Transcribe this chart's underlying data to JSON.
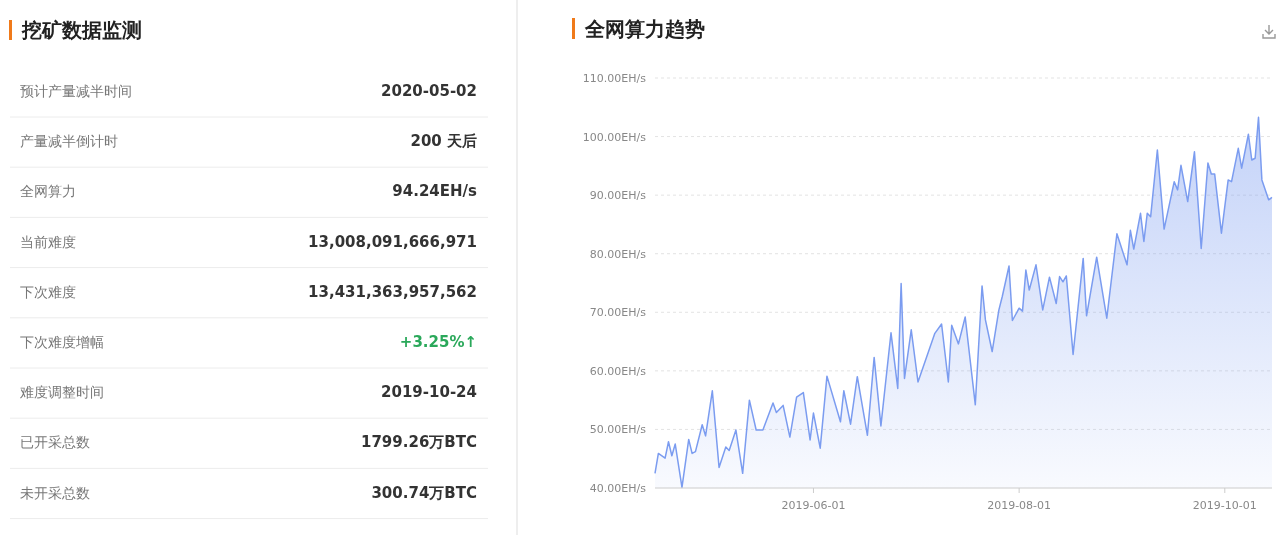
{
  "chart_data": [
    {
      "type": "other",
      "title": "挖矿数据监测",
      "categories": [
        "预计产量减半时间",
        "产量减半倒计时",
        "全网算力",
        "当前难度",
        "下次难度",
        "下次难度增幅",
        "难度调整时间",
        "已开采总数",
        "未开采总数"
      ],
      "value_labels": [
        "2020-05-02",
        "200 天后",
        "94.24EH/s",
        "13,008,091,666,971",
        "13,431,363,957,562",
        "+3.25%↑",
        "2019-10-24",
        "1799.26万BTC",
        "300.74万BTC"
      ],
      "colors": [
        "#333333",
        "#333333",
        "#333333",
        "#333333",
        "#333333",
        "#2aa85a",
        "#333333",
        "#333333",
        "#333333"
      ]
    },
    {
      "type": "area",
      "title": "全网算力趋势",
      "grid": "y",
      "xlim": [
        "2019-04-15",
        "2019-10-15"
      ],
      "xticks": [
        "2019-06-01",
        "2019-08-01",
        "2019-10-01"
      ],
      "ylim": [
        40,
        110
      ],
      "yticks": [
        {
          "value": 40,
          "label": "40.00EH/s"
        },
        {
          "value": 50,
          "label": "50.00EH/s"
        },
        {
          "value": 60,
          "label": "60.00EH/s"
        },
        {
          "value": 70,
          "label": "70.00EH/s"
        },
        {
          "value": 80,
          "label": "80.00EH/s"
        },
        {
          "value": 90,
          "label": "90.00EH/s"
        },
        {
          "value": 100,
          "label": "100.00EH/s"
        },
        {
          "value": 110,
          "label": "110.00EH/s"
        }
      ],
      "x": [
        "2019-04-15",
        "2019-04-16",
        "2019-04-18",
        "2019-04-19",
        "2019-04-20",
        "2019-04-21",
        "2019-04-23",
        "2019-04-25",
        "2019-04-26",
        "2019-04-27",
        "2019-04-29",
        "2019-04-30",
        "2019-05-02",
        "2019-05-04",
        "2019-05-06",
        "2019-05-07",
        "2019-05-09",
        "2019-05-11",
        "2019-05-13",
        "2019-05-15",
        "2019-05-17",
        "2019-05-20",
        "2019-05-21",
        "2019-05-23",
        "2019-05-25",
        "2019-05-27",
        "2019-05-29",
        "2019-05-31",
        "2019-06-01",
        "2019-06-03",
        "2019-06-05",
        "2019-06-09",
        "2019-06-10",
        "2019-06-12",
        "2019-06-14",
        "2019-06-17",
        "2019-06-19",
        "2019-06-21",
        "2019-06-24",
        "2019-06-26",
        "2019-06-27",
        "2019-06-28",
        "2019-06-30",
        "2019-07-02",
        "2019-07-07",
        "2019-07-09",
        "2019-07-11",
        "2019-07-12",
        "2019-07-14",
        "2019-07-16",
        "2019-07-19",
        "2019-07-21",
        "2019-07-22",
        "2019-07-24",
        "2019-07-26",
        "2019-07-27",
        "2019-07-29",
        "2019-07-30",
        "2019-08-01",
        "2019-08-02",
        "2019-08-03",
        "2019-08-04",
        "2019-08-06",
        "2019-08-08",
        "2019-08-10",
        "2019-08-12",
        "2019-08-13",
        "2019-08-14",
        "2019-08-15",
        "2019-08-17",
        "2019-08-20",
        "2019-08-21",
        "2019-08-24",
        "2019-08-27",
        "2019-08-30",
        "2019-09-02",
        "2019-09-03",
        "2019-09-04",
        "2019-09-06",
        "2019-09-07",
        "2019-09-08",
        "2019-09-09",
        "2019-09-11",
        "2019-09-13",
        "2019-09-16",
        "2019-09-17",
        "2019-09-18",
        "2019-09-20",
        "2019-09-22",
        "2019-09-24",
        "2019-09-26",
        "2019-09-27",
        "2019-09-28",
        "2019-09-30",
        "2019-10-02",
        "2019-10-03",
        "2019-10-05",
        "2019-10-06",
        "2019-10-08",
        "2019-10-09",
        "2019-10-10",
        "2019-10-11",
        "2019-10-12",
        "2019-10-14",
        "2019-10-15"
      ],
      "series": [
        {
          "color": "#7b9cf0",
          "values": [
            42.5,
            45.9,
            45.1,
            47.9,
            45.5,
            47.5,
            40.1,
            48.3,
            45.9,
            46.2,
            50.8,
            48.9,
            56.6,
            43.5,
            47.0,
            46.4,
            49.9,
            42.5,
            55.0,
            49.9,
            49.9,
            54.5,
            52.9,
            54.1,
            48.7,
            55.5,
            56.3,
            48.2,
            52.8,
            46.8,
            59.1,
            51.3,
            56.6,
            50.9,
            59.0,
            49.0,
            62.3,
            50.6,
            66.5,
            57.0,
            74.9,
            58.7,
            67.0,
            58.1,
            66.4,
            68.0,
            58.1,
            67.8,
            64.6,
            69.2,
            54.2,
            74.5,
            68.7,
            63.3,
            70.4,
            72.7,
            77.9,
            68.6,
            70.7,
            70.2,
            77.2,
            73.8,
            78.1,
            70.4,
            76.0,
            71.5,
            76.1,
            75.2,
            76.2,
            62.8,
            79.2,
            69.4,
            79.4,
            69.0,
            83.4,
            78.1,
            84.0,
            80.8,
            86.9,
            82.1,
            86.9,
            86.3,
            97.7,
            84.2,
            92.3,
            90.9,
            95.1,
            88.9,
            97.4,
            80.9,
            95.5,
            93.6,
            93.6,
            83.5,
            92.6,
            92.3,
            98.0,
            94.6,
            100.4,
            96.0,
            96.3,
            103.3,
            92.6,
            89.2,
            89.6
          ]
        }
      ]
    }
  ]
}
